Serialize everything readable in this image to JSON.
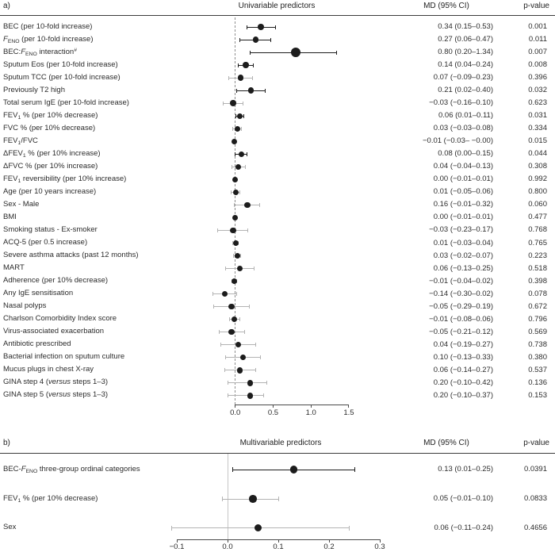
{
  "figure": {
    "panel_a_letter": "a)",
    "panel_b_letter": "b)"
  },
  "chart_data": [
    {
      "id": "a",
      "type": "forest",
      "title": "Univariable predictors",
      "md_header": "MD (95% CI)",
      "p_header": "p-value",
      "ref_line": 0.0,
      "ref_line_style": "dashed",
      "xlim_drawn": [
        0.0,
        1.5
      ],
      "x_ticks": [
        "0.0",
        "0.5",
        "1.0",
        "1.5"
      ],
      "x_tick_values": [
        0,
        0.5,
        1.0,
        1.5
      ],
      "rows": [
        {
          "label": "BEC (per 10-fold increase)",
          "md": 0.34,
          "lo": 0.15,
          "hi": 0.53,
          "md_text": "0.34 (0.15–0.53)",
          "p": "0.001",
          "sig": true
        },
        {
          "label": "*F*~ENO~ (per 10-fold increase)",
          "md": 0.27,
          "lo": 0.06,
          "hi": 0.47,
          "md_text": "0.27 (0.06–0.47)",
          "p": "0.011",
          "sig": true
        },
        {
          "label": "BEC:*F*~ENO~ interaction^#^",
          "md": 0.8,
          "lo": 0.2,
          "hi": 1.34,
          "md_text": "0.80 (0.20–1.34)",
          "p": "0.007",
          "sig": true,
          "big": true
        },
        {
          "label": "Sputum Eos (per 10-fold increase)",
          "md": 0.14,
          "lo": 0.04,
          "hi": 0.24,
          "md_text": "0.14 (0.04–0.24)",
          "p": "0.008",
          "sig": true
        },
        {
          "label": "Sputum TCC (per 10-fold increase)",
          "md": 0.07,
          "lo": -0.09,
          "hi": 0.23,
          "md_text": "0.07 (−0.09–0.23)",
          "p": "0.396",
          "sig": false
        },
        {
          "label": "Previously T2 high",
          "md": 0.21,
          "lo": 0.02,
          "hi": 0.4,
          "md_text": "0.21 (0.02–0.40)",
          "p": "0.032",
          "sig": true
        },
        {
          "label": "Total serum IgE (per 10-fold increase)",
          "md": -0.03,
          "lo": -0.16,
          "hi": 0.1,
          "md_text": "−0.03 (−0.16–0.10)",
          "p": "0.623",
          "sig": false
        },
        {
          "label": "FEV~1~ % (per 10% decrease)",
          "md": 0.06,
          "lo": 0.01,
          "hi": 0.11,
          "md_text": "0.06 (0.01–0.11)",
          "p": "0.031",
          "sig": true
        },
        {
          "label": "FVC % (per 10% decrease)",
          "md": 0.03,
          "lo": -0.03,
          "hi": 0.08,
          "md_text": "0.03 (−0.03–0.08)",
          "p": "0.334",
          "sig": false
        },
        {
          "label": "FEV~1~/FVC",
          "md": -0.01,
          "lo": -0.03,
          "hi": 0.0,
          "md_text": "−0.01 (−0.03– −0.00)",
          "p": "0.015",
          "sig": true
        },
        {
          "label": "ΔFEV~1~ % (per 10% increase)",
          "md": 0.08,
          "lo": 0.0,
          "hi": 0.15,
          "md_text": "0.08 (0.00–0.15)",
          "p": "0.044",
          "sig": true
        },
        {
          "label": "ΔFVC % (per 10% increase)",
          "md": 0.04,
          "lo": -0.04,
          "hi": 0.13,
          "md_text": "0.04 (−0.04–0.13)",
          "p": "0.308",
          "sig": false
        },
        {
          "label": "FEV~1~ reversibility (per 10% increase)",
          "md": 0.0,
          "lo": -0.01,
          "hi": 0.01,
          "md_text": "0.00 (−0.01–0.01)",
          "p": "0.992",
          "sig": false
        },
        {
          "label": "Age (per 10 years increase)",
          "md": 0.01,
          "lo": -0.05,
          "hi": 0.06,
          "md_text": "0.01 (−0.05–0.06)",
          "p": "0.800",
          "sig": false
        },
        {
          "label": "Sex - Male",
          "md": 0.16,
          "lo": -0.01,
          "hi": 0.32,
          "md_text": "0.16 (−0.01–0.32)",
          "p": "0.060",
          "sig": false
        },
        {
          "label": "BMI",
          "md": 0.0,
          "lo": -0.01,
          "hi": 0.01,
          "md_text": "0.00 (−0.01–0.01)",
          "p": "0.477",
          "sig": false
        },
        {
          "label": "Smoking status - Ex-smoker",
          "md": -0.03,
          "lo": -0.23,
          "hi": 0.17,
          "md_text": "−0.03 (−0.23–0.17)",
          "p": "0.768",
          "sig": false
        },
        {
          "label": "ACQ-5 (per 0.5 increase)",
          "md": 0.01,
          "lo": -0.03,
          "hi": 0.04,
          "md_text": "0.01 (−0.03–0.04)",
          "p": "0.765",
          "sig": false
        },
        {
          "label": "Severe asthma attacks (past 12 months)",
          "md": 0.03,
          "lo": -0.02,
          "hi": 0.07,
          "md_text": "0.03 (−0.02–0.07)",
          "p": "0.223",
          "sig": false
        },
        {
          "label": "MART",
          "md": 0.06,
          "lo": -0.13,
          "hi": 0.25,
          "md_text": "0.06 (−0.13–0.25)",
          "p": "0.518",
          "sig": false
        },
        {
          "label": "Adherence (per 10% decrease)",
          "md": -0.01,
          "lo": -0.04,
          "hi": 0.02,
          "md_text": "−0.01 (−0.04–0.02)",
          "p": "0.398",
          "sig": false
        },
        {
          "label": "Any IgE sensitisation",
          "md": -0.14,
          "lo": -0.3,
          "hi": 0.02,
          "md_text": "−0.14 (−0.30–0.02)",
          "p": "0.078",
          "sig": false
        },
        {
          "label": "Nasal polyps",
          "md": -0.05,
          "lo": -0.29,
          "hi": 0.19,
          "md_text": "−0.05 (−0.29–0.19)",
          "p": "0.672",
          "sig": false
        },
        {
          "label": "Charlson Comorbidity Index score",
          "md": -0.01,
          "lo": -0.08,
          "hi": 0.06,
          "md_text": "−0.01 (−0.08–0.06)",
          "p": "0.796",
          "sig": false
        },
        {
          "label": "Virus-associated exacerbation",
          "md": -0.05,
          "lo": -0.21,
          "hi": 0.12,
          "md_text": "−0.05 (−0.21–0.12)",
          "p": "0.569",
          "sig": false
        },
        {
          "label": "Antibiotic prescribed",
          "md": 0.04,
          "lo": -0.19,
          "hi": 0.27,
          "md_text": "0.04 (−0.19–0.27)",
          "p": "0.738",
          "sig": false
        },
        {
          "label": "Bacterial infection on sputum culture",
          "md": 0.1,
          "lo": -0.13,
          "hi": 0.33,
          "md_text": "0.10 (−0.13–0.33)",
          "p": "0.380",
          "sig": false
        },
        {
          "label": "Mucus plugs in chest X-ray",
          "md": 0.06,
          "lo": -0.14,
          "hi": 0.27,
          "md_text": "0.06 (−0.14–0.27)",
          "p": "0.537",
          "sig": false
        },
        {
          "label": "GINA step 4 (*versus* steps 1–3)",
          "md": 0.2,
          "lo": -0.1,
          "hi": 0.42,
          "md_text": "0.20 (−0.10–0.42)",
          "p": "0.136",
          "sig": false
        },
        {
          "label": "GINA step 5 (*versus* steps 1–3)",
          "md": 0.2,
          "lo": -0.1,
          "hi": 0.37,
          "md_text": "0.20 (−0.10–0.37)",
          "p": "0.153",
          "sig": false
        }
      ]
    },
    {
      "id": "b",
      "type": "forest",
      "title": "Multivariable predictors",
      "md_header": "MD (95% CI)",
      "p_header": "p-value",
      "ref_line": 0.0,
      "ref_line_style": "solid",
      "xlim_drawn": [
        -0.1,
        0.3
      ],
      "x_ticks": [
        "−0.1",
        "0.0",
        "0.1",
        "0.2",
        "0.3"
      ],
      "x_tick_values": [
        -0.1,
        0,
        0.1,
        0.2,
        0.3
      ],
      "rows": [
        {
          "label": "BEC-*F*~ENO~ three-group ordinal categories",
          "md": 0.13,
          "lo": 0.01,
          "hi": 0.25,
          "md_text": "0.13 (0.01–0.25)",
          "p": "0.0391",
          "sig": true
        },
        {
          "label": "FEV~1~ % (per 10% decrease)",
          "md": 0.05,
          "lo": -0.01,
          "hi": 0.1,
          "md_text": "0.05 (−0.01–0.10)",
          "p": "0.0833",
          "sig": false
        },
        {
          "label": "Sex",
          "md": 0.06,
          "lo": -0.11,
          "hi": 0.24,
          "md_text": "0.06 (−0.11–0.24)",
          "p": "0.4656",
          "sig": false
        }
      ]
    }
  ],
  "colors": {
    "significant_ci": "#1c1c1c",
    "nonsignificant_ci": "#b3b3b3",
    "dot": "#1c1c1c",
    "axis": "#4a4a4a",
    "reference_line": "#8f8f8f"
  }
}
